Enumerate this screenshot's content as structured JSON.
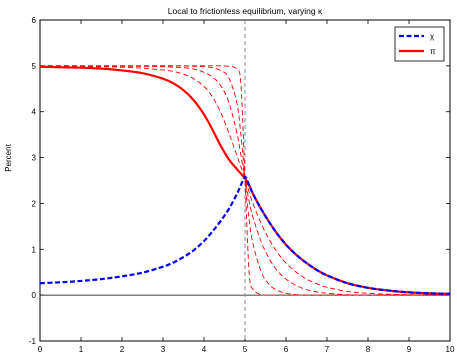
{
  "chart_data": {
    "type": "line",
    "title": "Local to frictionless equilibrium, varying κ",
    "xlabel": "",
    "ylabel": "Percent",
    "xlim": [
      0,
      10
    ],
    "ylim": [
      -1,
      6
    ],
    "xticks": [
      0,
      1,
      2,
      3,
      4,
      5,
      6,
      7,
      8,
      9,
      10
    ],
    "yticks": [
      -1,
      0,
      1,
      2,
      3,
      4,
      5,
      6
    ],
    "grid": false,
    "legend_position": "top-right",
    "reference_lines": {
      "vertical_x": 5,
      "horizontal_y": 0
    },
    "x": [
      0,
      0.5,
      1,
      1.5,
      2,
      2.5,
      3,
      3.25,
      3.5,
      3.75,
      4,
      4.2,
      4.4,
      4.6,
      4.8,
      4.9,
      5,
      5.1,
      5.2,
      5.4,
      5.6,
      5.8,
      6,
      6.25,
      6.5,
      6.75,
      7,
      7.5,
      8,
      8.5,
      9,
      9.5,
      10
    ],
    "series": [
      {
        "name": "χ",
        "color": "#0000ff",
        "dash": "dashed",
        "width": "thick",
        "values": [
          0.26,
          0.28,
          0.31,
          0.35,
          0.41,
          0.49,
          0.62,
          0.71,
          0.83,
          0.98,
          1.18,
          1.38,
          1.61,
          1.87,
          2.2,
          2.4,
          2.58,
          2.4,
          2.2,
          1.87,
          1.58,
          1.32,
          1.1,
          0.88,
          0.7,
          0.55,
          0.43,
          0.26,
          0.16,
          0.1,
          0.06,
          0.04,
          0.03
        ]
      },
      {
        "name": "π",
        "color": "#ff0000",
        "dash": "solid",
        "width": "thick",
        "values": [
          4.98,
          4.97,
          4.96,
          4.94,
          4.9,
          4.84,
          4.72,
          4.62,
          4.47,
          4.25,
          3.94,
          3.62,
          3.27,
          2.97,
          2.75,
          2.65,
          2.55,
          2.4,
          2.2,
          1.87,
          1.58,
          1.32,
          1.1,
          0.88,
          0.7,
          0.55,
          0.43,
          0.26,
          0.16,
          0.1,
          0.06,
          0.04,
          0.03
        ]
      },
      {
        "name": "",
        "color": "#ff0000",
        "dash": "dashed",
        "width": "thin",
        "values": [
          4.99,
          4.99,
          4.98,
          4.98,
          4.97,
          4.95,
          4.91,
          4.88,
          4.82,
          4.72,
          4.55,
          4.33,
          4,
          3.55,
          3.05,
          2.8,
          2.55,
          2.25,
          1.98,
          1.55,
          1.2,
          0.92,
          0.7,
          0.5,
          0.35,
          0.25,
          0.17,
          0.08,
          0.04,
          0.02,
          0.01,
          0,
          0
        ]
      },
      {
        "name": "",
        "color": "#ff0000",
        "dash": "dashed",
        "width": "thin",
        "values": [
          5,
          5,
          5,
          4.99,
          4.99,
          4.99,
          4.98,
          4.97,
          4.96,
          4.93,
          4.86,
          4.76,
          4.58,
          4.22,
          3.55,
          3.05,
          2.55,
          2.05,
          1.68,
          1.15,
          0.78,
          0.52,
          0.35,
          0.21,
          0.12,
          0.07,
          0.04,
          0.01,
          0,
          0,
          0,
          0,
          0
        ]
      },
      {
        "name": "",
        "color": "#ff0000",
        "dash": "dashed",
        "width": "thin",
        "values": [
          5,
          5,
          5,
          5,
          5,
          5,
          5,
          5,
          5,
          4.99,
          4.98,
          4.96,
          4.9,
          4.75,
          4.2,
          3.5,
          2.55,
          1.65,
          1.1,
          0.5,
          0.22,
          0.1,
          0.04,
          0.01,
          0,
          0,
          0,
          0,
          0,
          0,
          0,
          0,
          0
        ]
      },
      {
        "name": "",
        "color": "#ff0000",
        "dash": "dashed",
        "width": "thin",
        "values": [
          5,
          5,
          5,
          5,
          5,
          5,
          5,
          5,
          5,
          5,
          5,
          5,
          5,
          4.99,
          4.93,
          4.6,
          2.55,
          0.5,
          0.12,
          0.01,
          0,
          0,
          0,
          0,
          0,
          0,
          0,
          0,
          0,
          0,
          0,
          0,
          0
        ]
      }
    ]
  }
}
